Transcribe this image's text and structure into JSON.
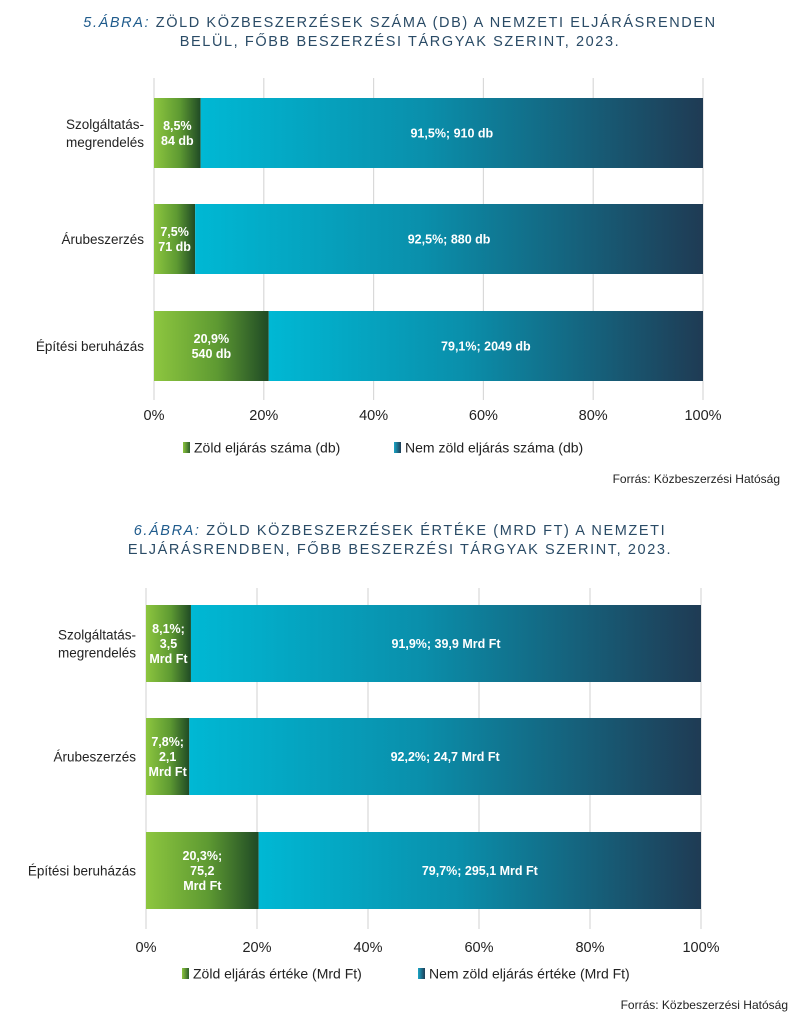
{
  "chart_data": [
    {
      "type": "bar",
      "orientation": "horizontal",
      "stacked": "percent",
      "title_prefix": "5.ÁBRA:",
      "title_line1": "ZÖLD KÖZBESZERZÉSEK SZÁMA (DB) A NEMZETI ELJÁRÁSRENDEN",
      "title_line2": "BELÜL, FŐBB BESZERZÉSI TÁRGYAK SZERINT, 2023.",
      "categories": [
        {
          "line1": "Szolgáltatás-",
          "line2": "megrendelés"
        },
        {
          "line1": "Árubeszerzés",
          "line2": ""
        },
        {
          "line1": "Építési beruházás",
          "line2": ""
        }
      ],
      "series": [
        {
          "name": "Zöld eljárás száma (db)",
          "values": [
            8.5,
            7.5,
            20.9
          ],
          "labels": [
            [
              "8,5%",
              "84 db"
            ],
            [
              "7,5%",
              "71 db"
            ],
            [
              "20,9%",
              "540 db"
            ]
          ]
        },
        {
          "name": "Nem zöld eljárás száma (db)",
          "values": [
            91.5,
            92.5,
            79.1
          ],
          "labels": [
            [
              "91,5%; 910 db"
            ],
            [
              "92,5%; 880 db"
            ],
            [
              "79,1%; 2049 db"
            ]
          ]
        }
      ],
      "xlim": [
        0,
        100
      ],
      "ticks": [
        "0%",
        "20%",
        "40%",
        "60%",
        "80%",
        "100%"
      ],
      "grid": true,
      "legend": "bottom",
      "source": "Forrás: Közbeszerzési Hatóság"
    },
    {
      "type": "bar",
      "orientation": "horizontal",
      "stacked": "percent",
      "title_prefix": "6.ÁBRA:",
      "title_line1": "ZÖLD KÖZBESZERZÉSEK ÉRTÉKE (MRD FT) A NEMZETI",
      "title_line2": "ELJÁRÁSRENDBEN, FŐBB BESZERZÉSI TÁRGYAK SZERINT, 2023.",
      "categories": [
        {
          "line1": "Szolgáltatás-",
          "line2": "megrendelés"
        },
        {
          "line1": "Árubeszerzés",
          "line2": ""
        },
        {
          "line1": "Építési beruházás",
          "line2": ""
        }
      ],
      "series": [
        {
          "name": "Zöld eljárás értéke (Mrd Ft)",
          "values": [
            8.1,
            7.8,
            20.3
          ],
          "labels": [
            [
              "8,1%;",
              "3,5",
              "Mrd Ft"
            ],
            [
              "7,8%;",
              "2,1",
              "Mrd Ft"
            ],
            [
              "20,3%;",
              "75,2",
              "Mrd Ft"
            ]
          ]
        },
        {
          "name": "Nem zöld eljárás értéke (Mrd Ft)",
          "values": [
            91.9,
            92.2,
            79.7
          ],
          "labels": [
            [
              "91,9%; 39,9 Mrd Ft"
            ],
            [
              "92,2%; 24,7 Mrd Ft"
            ],
            [
              "79,7%; 295,1 Mrd Ft"
            ]
          ]
        }
      ],
      "xlim": [
        0,
        100
      ],
      "ticks": [
        "0%",
        "20%",
        "40%",
        "60%",
        "80%",
        "100%"
      ],
      "grid": true,
      "legend": "bottom",
      "source": "Forrás: Közbeszerzési Hatóság"
    }
  ]
}
